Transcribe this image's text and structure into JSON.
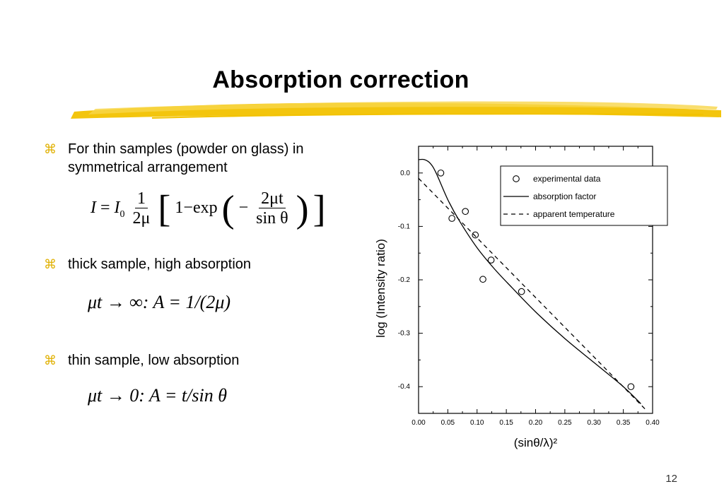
{
  "slide": {
    "title": "Absorption correction",
    "page_number": "12",
    "accent_color": "#f2c200"
  },
  "bullets": [
    {
      "text": "For thin samples (powder on glass) in symmetrical arrangement"
    },
    {
      "text": "thick sample, high absorption"
    },
    {
      "text": "thin sample, low absorption"
    }
  ],
  "equations": {
    "eq1": {
      "lhs": "I",
      "i0": "I",
      "sub0": "0",
      "one": "1",
      "twomu": "2μ",
      "one_minus": "1−exp",
      "minus": "−",
      "num": "2μt",
      "den": "sin θ"
    },
    "eq2": {
      "text": "μt → ∞: A = 1/(2μ)"
    },
    "eq3": {
      "text": "μt → 0: A = t/sin θ"
    }
  },
  "chart_data": {
    "type": "scatter",
    "xlabel": "(sinθ/λ)²",
    "ylabel": "log (Intensity ratio)",
    "xlim": [
      0.0,
      0.4
    ],
    "ylim": [
      -0.45,
      0.05
    ],
    "xticks": [
      "0.00",
      "0.05",
      "0.10",
      "0.15",
      "0.20",
      "0.25",
      "0.30",
      "0.35",
      "0.40"
    ],
    "yticks": [
      "0.0",
      "-0.1",
      "-0.2",
      "-0.3",
      "-0.4"
    ],
    "legend_position": "top-right",
    "series": [
      {
        "name": "experimental data",
        "style": "circle",
        "x": [
          0.038,
          0.057,
          0.08,
          0.097,
          0.11,
          0.124,
          0.176,
          0.363
        ],
        "y": [
          0.0,
          -0.085,
          -0.072,
          -0.116,
          -0.199,
          -0.163,
          -0.222,
          -0.4
        ]
      },
      {
        "name": "absorption factor",
        "style": "solid",
        "x": [
          0.0,
          0.01,
          0.02,
          0.03,
          0.05,
          0.07,
          0.1,
          0.13,
          0.16,
          0.2,
          0.25,
          0.3,
          0.35,
          0.38
        ],
        "y": [
          0.025,
          0.025,
          0.018,
          0.0,
          -0.05,
          -0.09,
          -0.14,
          -0.18,
          -0.215,
          -0.26,
          -0.31,
          -0.355,
          -0.4,
          -0.432
        ]
      },
      {
        "name": "apparent temperature",
        "style": "dashed",
        "x": [
          0.0,
          0.39
        ],
        "y": [
          -0.01,
          -0.445
        ]
      }
    ]
  }
}
